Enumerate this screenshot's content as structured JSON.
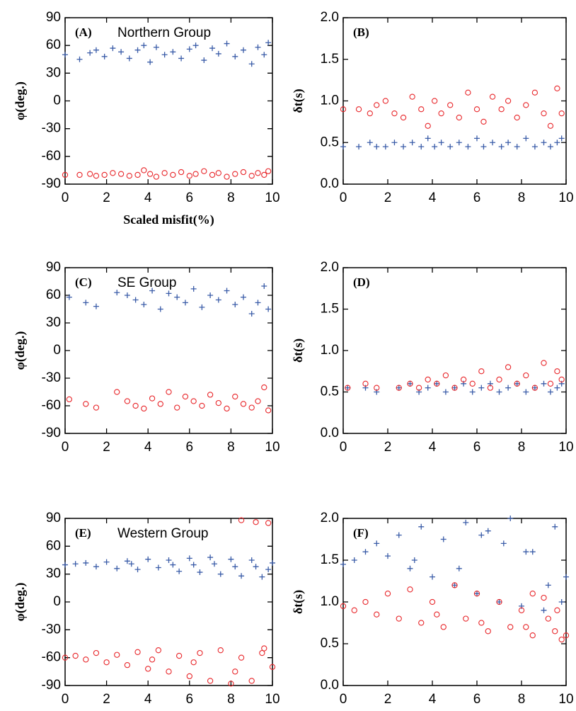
{
  "chart_data": [
    {
      "type": "scatter",
      "label": "(A)",
      "annotation": "Northern Group",
      "xlabel": "Scaled misfit(%)",
      "ylabel": "φ(deg.)",
      "xlim": [
        0,
        10
      ],
      "xticks": [
        0,
        2,
        4,
        6,
        8,
        10
      ],
      "ylim": [
        -90,
        90
      ],
      "yticks": [
        -90,
        -60,
        -30,
        0,
        30,
        60,
        90
      ],
      "series": [
        {
          "marker": "plus",
          "color": "#3a5ca8",
          "x": [
            0,
            0.7,
            1.2,
            1.5,
            1.9,
            2.3,
            2.7,
            3.1,
            3.5,
            3.8,
            4.1,
            4.4,
            4.8,
            5.2,
            5.6,
            6.0,
            6.3,
            6.7,
            7.1,
            7.4,
            7.8,
            8.2,
            8.6,
            9.0,
            9.3,
            9.6,
            9.8
          ],
          "values": [
            50,
            45,
            52,
            55,
            48,
            57,
            53,
            46,
            55,
            60,
            42,
            58,
            50,
            53,
            46,
            56,
            60,
            44,
            57,
            51,
            62,
            48,
            55,
            40,
            58,
            50,
            63
          ]
        },
        {
          "marker": "circle",
          "color": "#e8262a",
          "x": [
            0,
            0.7,
            1.2,
            1.5,
            1.9,
            2.3,
            2.7,
            3.1,
            3.5,
            3.8,
            4.1,
            4.4,
            4.8,
            5.2,
            5.6,
            6.0,
            6.3,
            6.7,
            7.1,
            7.4,
            7.8,
            8.2,
            8.6,
            9.0,
            9.3,
            9.6,
            9.8
          ],
          "values": [
            -80,
            -80,
            -79,
            -81,
            -80,
            -78,
            -79,
            -81,
            -80,
            -75,
            -79,
            -82,
            -78,
            -80,
            -77,
            -81,
            -79,
            -76,
            -80,
            -78,
            -82,
            -79,
            -77,
            -81,
            -78,
            -80,
            -76
          ]
        }
      ]
    },
    {
      "type": "scatter",
      "label": "(B)",
      "ylabel": "δt(s)",
      "xlim": [
        0,
        10
      ],
      "xticks": [
        0,
        2,
        4,
        6,
        8,
        10
      ],
      "ylim": [
        0,
        2
      ],
      "yticks": [
        {
          "value": 0,
          "label": "0.0"
        },
        0.5,
        {
          "value": 1,
          "label": "1.0"
        },
        1.5,
        {
          "value": 2,
          "label": "2.0"
        }
      ],
      "series": [
        {
          "marker": "plus",
          "color": "#3a5ca8",
          "x": [
            0,
            0.7,
            1.2,
            1.5,
            1.9,
            2.3,
            2.7,
            3.1,
            3.5,
            3.8,
            4.1,
            4.4,
            4.8,
            5.2,
            5.6,
            6.0,
            6.3,
            6.7,
            7.1,
            7.4,
            7.8,
            8.2,
            8.6,
            9.0,
            9.3,
            9.6,
            9.8
          ],
          "values": [
            0.45,
            0.45,
            0.5,
            0.45,
            0.45,
            0.5,
            0.45,
            0.5,
            0.45,
            0.55,
            0.45,
            0.5,
            0.45,
            0.5,
            0.45,
            0.55,
            0.45,
            0.5,
            0.45,
            0.5,
            0.45,
            0.55,
            0.45,
            0.5,
            0.45,
            0.5,
            0.55
          ]
        },
        {
          "marker": "circle",
          "color": "#e8262a",
          "x": [
            0,
            0.7,
            1.2,
            1.5,
            1.9,
            2.3,
            2.7,
            3.1,
            3.5,
            3.8,
            4.1,
            4.4,
            4.8,
            5.2,
            5.6,
            6.0,
            6.3,
            6.7,
            7.1,
            7.4,
            7.8,
            8.2,
            8.6,
            9.0,
            9.3,
            9.6,
            9.8
          ],
          "values": [
            0.9,
            0.9,
            0.85,
            0.95,
            1.0,
            0.85,
            0.8,
            1.05,
            0.9,
            0.7,
            1.0,
            0.85,
            0.95,
            0.8,
            1.1,
            0.9,
            0.75,
            1.05,
            0.9,
            1.0,
            0.8,
            0.95,
            1.1,
            0.85,
            0.7,
            1.15,
            0.85
          ]
        }
      ]
    },
    {
      "type": "scatter",
      "label": "(C)",
      "annotation": "SE Group",
      "ylabel": "φ(deg.)",
      "xlim": [
        0,
        10
      ],
      "xticks": [
        0,
        2,
        4,
        6,
        8,
        10
      ],
      "ylim": [
        -90,
        90
      ],
      "yticks": [
        -90,
        -60,
        -30,
        0,
        30,
        60,
        90
      ],
      "series": [
        {
          "marker": "plus",
          "color": "#3a5ca8",
          "x": [
            0.2,
            1.0,
            1.5,
            2.5,
            3.0,
            3.4,
            3.8,
            4.2,
            4.6,
            5.0,
            5.4,
            5.8,
            6.2,
            6.6,
            7.0,
            7.4,
            7.8,
            8.2,
            8.6,
            9.0,
            9.3,
            9.6,
            9.8
          ],
          "values": [
            58,
            52,
            48,
            63,
            60,
            55,
            50,
            65,
            45,
            62,
            58,
            52,
            67,
            47,
            60,
            55,
            65,
            50,
            58,
            40,
            52,
            70,
            45
          ]
        },
        {
          "marker": "circle",
          "color": "#e8262a",
          "x": [
            0.2,
            1.0,
            1.5,
            2.5,
            3.0,
            3.4,
            3.8,
            4.2,
            4.6,
            5.0,
            5.4,
            5.8,
            6.2,
            6.6,
            7.0,
            7.4,
            7.8,
            8.2,
            8.6,
            9.0,
            9.3,
            9.6,
            9.8
          ],
          "values": [
            -53,
            -58,
            -62,
            -45,
            -55,
            -60,
            -63,
            -52,
            -58,
            -45,
            -62,
            -50,
            -55,
            -60,
            -48,
            -57,
            -63,
            -50,
            -58,
            -62,
            -55,
            -40,
            -65
          ]
        }
      ]
    },
    {
      "type": "scatter",
      "label": "(D)",
      "ylabel": "δt(s)",
      "xlim": [
        0,
        10
      ],
      "xticks": [
        0,
        2,
        4,
        6,
        8,
        10
      ],
      "ylim": [
        0,
        2
      ],
      "yticks": [
        {
          "value": 0,
          "label": "0.0"
        },
        0.5,
        {
          "value": 1,
          "label": "1.0"
        },
        1.5,
        {
          "value": 2,
          "label": "2.0"
        }
      ],
      "series": [
        {
          "marker": "plus",
          "color": "#3a5ca8",
          "x": [
            0.2,
            1.0,
            1.5,
            2.5,
            3.0,
            3.4,
            3.8,
            4.2,
            4.6,
            5.0,
            5.4,
            5.8,
            6.2,
            6.6,
            7.0,
            7.4,
            7.8,
            8.2,
            8.6,
            9.0,
            9.3,
            9.6,
            9.8
          ],
          "values": [
            0.55,
            0.55,
            0.5,
            0.55,
            0.6,
            0.5,
            0.55,
            0.6,
            0.5,
            0.55,
            0.6,
            0.5,
            0.55,
            0.6,
            0.5,
            0.55,
            0.6,
            0.5,
            0.55,
            0.6,
            0.5,
            0.55,
            0.6
          ]
        },
        {
          "marker": "circle",
          "color": "#e8262a",
          "x": [
            0.2,
            1.0,
            1.5,
            2.5,
            3.0,
            3.4,
            3.8,
            4.2,
            4.6,
            5.0,
            5.4,
            5.8,
            6.2,
            6.6,
            7.0,
            7.4,
            7.8,
            8.2,
            8.6,
            9.0,
            9.3,
            9.6,
            9.8
          ],
          "values": [
            0.55,
            0.6,
            0.55,
            0.55,
            0.6,
            0.55,
            0.65,
            0.6,
            0.7,
            0.55,
            0.65,
            0.6,
            0.75,
            0.55,
            0.65,
            0.8,
            0.6,
            0.7,
            0.55,
            0.85,
            0.6,
            0.75,
            0.65
          ]
        }
      ]
    },
    {
      "type": "scatter",
      "label": "(E)",
      "annotation": "Western Group",
      "ylabel": "φ(deg.)",
      "xlim": [
        0,
        10
      ],
      "xticks": [
        0,
        2,
        4,
        6,
        8,
        10
      ],
      "ylim": [
        -90,
        90
      ],
      "yticks": [
        -90,
        -60,
        -30,
        0,
        30,
        60,
        90
      ],
      "series": [
        {
          "marker": "plus",
          "color": "#3a5ca8",
          "x": [
            0,
            0.5,
            1,
            1.5,
            2,
            2.5,
            3,
            3.5,
            4,
            4.5,
            5,
            5.5,
            6,
            6.5,
            7,
            7.5,
            8,
            8.5,
            9,
            9.5,
            10,
            3.2,
            5.2,
            7.2,
            9.2,
            6.2,
            8.2,
            9.8
          ],
          "values": [
            40,
            41,
            42,
            38,
            43,
            36,
            44,
            35,
            46,
            37,
            45,
            33,
            47,
            32,
            48,
            30,
            46,
            28,
            45,
            27,
            42,
            41,
            40,
            41,
            38,
            40,
            38,
            35
          ]
        },
        {
          "marker": "circle",
          "color": "#e8262a",
          "x": [
            0,
            0.5,
            1,
            1.5,
            2,
            2.5,
            3,
            3.5,
            4,
            4.5,
            5,
            5.5,
            6,
            6.5,
            7,
            7.5,
            8,
            8.5,
            9,
            9.5,
            10,
            4.2,
            6.2,
            8.2,
            9.6,
            8.5,
            9.2,
            9.8
          ],
          "values": [
            -60,
            -58,
            -62,
            -55,
            -65,
            -57,
            -68,
            -54,
            -72,
            -52,
            -75,
            -58,
            -80,
            -55,
            -85,
            -52,
            -88,
            -60,
            -85,
            -55,
            -70,
            -62,
            -65,
            -75,
            -50,
            88,
            86,
            85
          ]
        }
      ]
    },
    {
      "type": "scatter",
      "label": "(F)",
      "ylabel": "δt(s)",
      "xlim": [
        0,
        10
      ],
      "xticks": [
        0,
        2,
        4,
        6,
        8,
        10
      ],
      "ylim": [
        0,
        2
      ],
      "yticks": [
        {
          "value": 0,
          "label": "0.0"
        },
        0.5,
        {
          "value": 1,
          "label": "1.0"
        },
        1.5,
        {
          "value": 2,
          "label": "2.0"
        }
      ],
      "series": [
        {
          "marker": "plus",
          "color": "#3a5ca8",
          "x": [
            0,
            0.5,
            1,
            1.5,
            2,
            2.5,
            3,
            3.5,
            4,
            4.5,
            5,
            5.5,
            6,
            6.5,
            7,
            7.5,
            8,
            8.5,
            9,
            9.5,
            10,
            3.2,
            5.2,
            7.2,
            9.2,
            6.2,
            8.2,
            9.8
          ],
          "values": [
            1.45,
            1.5,
            1.6,
            1.7,
            1.55,
            1.8,
            1.4,
            1.9,
            1.3,
            1.75,
            1.2,
            1.95,
            1.1,
            1.85,
            1.0,
            2.0,
            0.95,
            1.6,
            0.9,
            1.9,
            1.3,
            1.5,
            1.4,
            1.7,
            1.2,
            1.8,
            1.6,
            1.0
          ]
        },
        {
          "marker": "circle",
          "color": "#e8262a",
          "x": [
            0,
            0.5,
            1,
            1.5,
            2,
            2.5,
            3,
            3.5,
            4,
            4.5,
            5,
            5.5,
            6,
            6.5,
            7,
            7.5,
            8,
            8.5,
            9,
            9.5,
            10,
            4.2,
            6.2,
            8.2,
            9.6,
            8.5,
            9.2,
            9.8
          ],
          "values": [
            0.95,
            0.9,
            1.0,
            0.85,
            1.1,
            0.8,
            1.15,
            0.75,
            1.0,
            0.7,
            1.2,
            0.8,
            1.1,
            0.65,
            1.0,
            0.7,
            0.9,
            0.6,
            1.05,
            0.65,
            0.6,
            0.85,
            0.75,
            0.7,
            0.9,
            1.1,
            0.8,
            0.55
          ]
        }
      ]
    }
  ]
}
